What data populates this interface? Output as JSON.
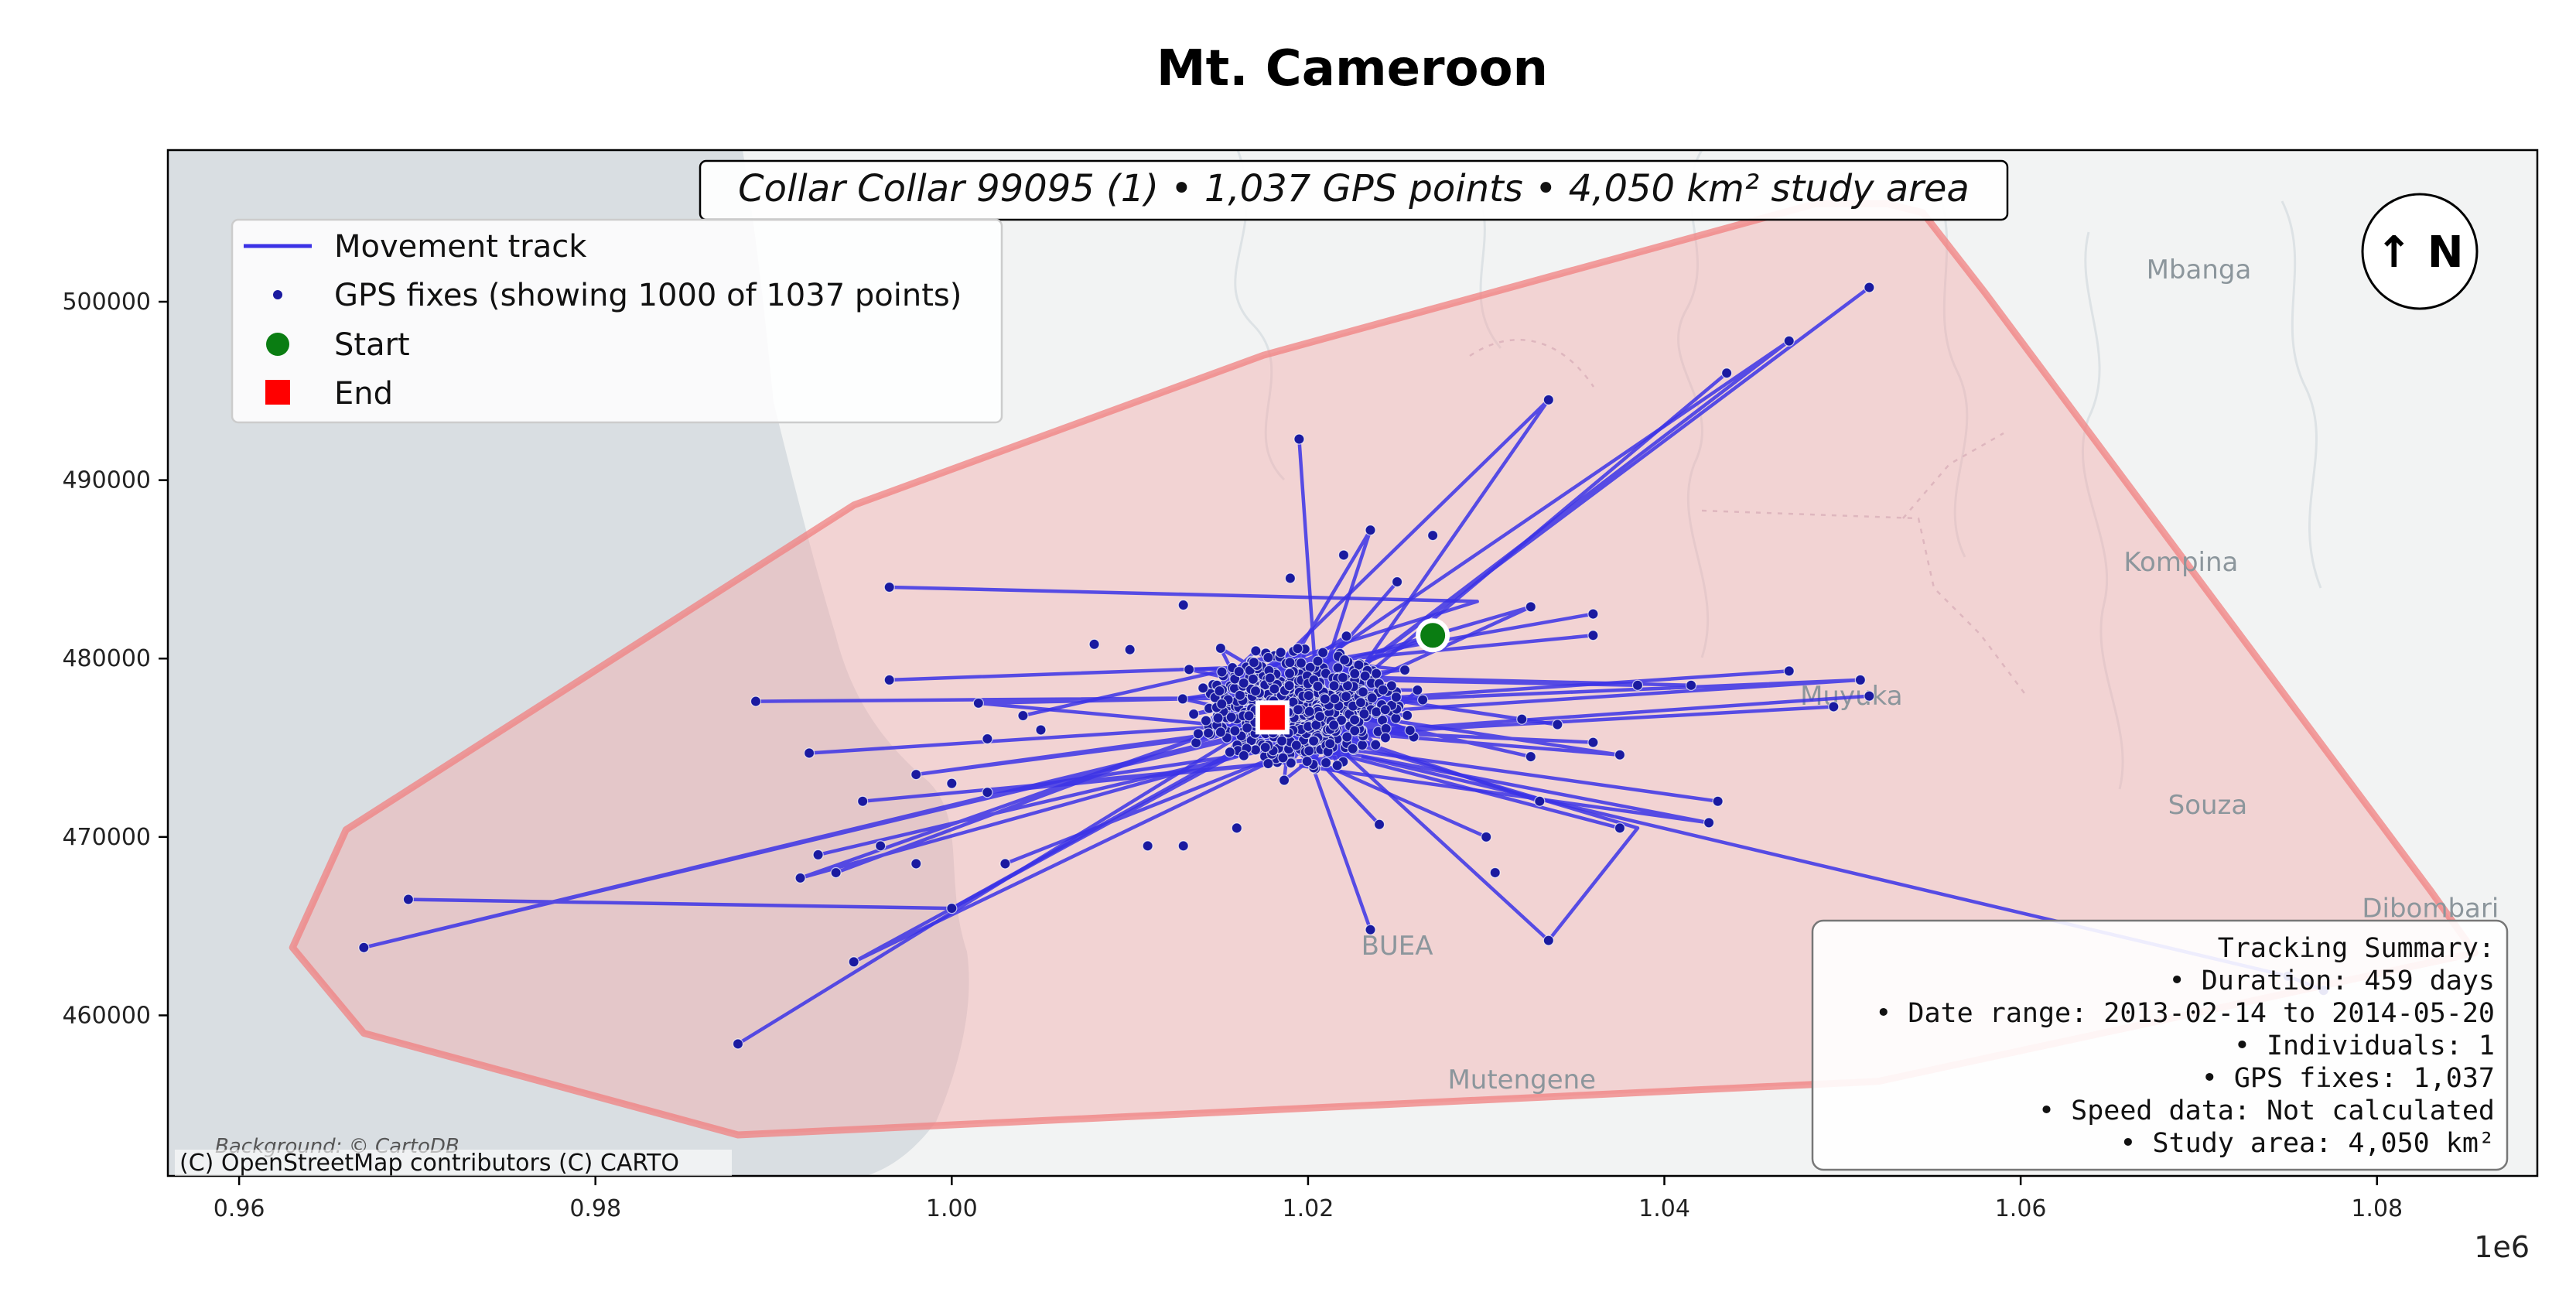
{
  "chart_data": {
    "type": "scatter",
    "title": "Mt. Cameroon",
    "xlim": [
      956000,
      1089000
    ],
    "ylim": [
      451000,
      508500
    ],
    "x_ticks": [
      960000,
      980000,
      1000000,
      1020000,
      1040000,
      1060000,
      1080000
    ],
    "x_tick_labels": [
      "0.96",
      "0.98",
      "1.00",
      "1.02",
      "1.04",
      "1.06",
      "1.08"
    ],
    "x_offset_label": "1e6",
    "y_ticks": [
      460000,
      470000,
      480000,
      490000,
      500000
    ],
    "y_tick_labels": [
      "460000",
      "470000",
      "480000",
      "490000",
      "500000"
    ],
    "banner": "Collar Collar 99095 (1) • 1,037 GPS points • 4,050 km² study area",
    "north_arrow": "↑ N",
    "legend": {
      "position": "top-left",
      "entries": [
        {
          "label": "Movement track",
          "marker": "line",
          "color": "#3b32e6"
        },
        {
          "label": "GPS fixes (showing 1000 of 1037 points)",
          "marker": "dot",
          "color": "#1a1aa0"
        },
        {
          "label": "Start",
          "marker": "circle",
          "color": "#0a7d12"
        },
        {
          "label": "End",
          "marker": "square",
          "color": "#ff0000"
        }
      ]
    },
    "summary": {
      "heading": "Tracking Summary:",
      "lines": [
        "• Duration: 459 days",
        "• Date range: 2013-02-14 to 2014-05-20",
        "• Individuals: 1",
        "• GPS fixes: 1,037",
        "• Speed data: Not calculated",
        "• Study area: 4,050 km²"
      ]
    },
    "credits": {
      "background": "Background: © CartoDB",
      "attribution": "(C) OpenStreetMap contributors (C) CARTO"
    },
    "map_labels": [
      {
        "text": "Mbanga",
        "x": 1070000,
        "y": 501300
      },
      {
        "text": "Kompina",
        "x": 1069000,
        "y": 484900
      },
      {
        "text": "Muyuka",
        "x": 1050500,
        "y": 477400
      },
      {
        "text": "Souza",
        "x": 1070500,
        "y": 471300
      },
      {
        "text": "Dibombari",
        "x": 1083000,
        "y": 465500
      },
      {
        "text": "BUEA",
        "x": 1025000,
        "y": 463400
      },
      {
        "text": "Mutengene",
        "x": 1032000,
        "y": 455900
      }
    ],
    "hull": [
      [
        1052500,
        505500
      ],
      [
        1054500,
        505000
      ],
      [
        1058000,
        500500
      ],
      [
        1083000,
        467000
      ],
      [
        1085500,
        463500
      ],
      [
        1052000,
        456300
      ],
      [
        988000,
        453300
      ],
      [
        967000,
        459000
      ],
      [
        963000,
        463800
      ],
      [
        966000,
        470400
      ],
      [
        994500,
        488600
      ],
      [
        1017500,
        497000
      ],
      [
        1048500,
        505500
      ]
    ],
    "colors": {
      "hull_fill": "#f4a6a6",
      "hull_edge": "#f08080",
      "track": "#3b32e6",
      "fix": "#1a1aa0",
      "water": "#d9dee2",
      "land": "#f2f3f3"
    },
    "start": {
      "x": 1027000,
      "y": 481300
    },
    "end": {
      "x": 1018000,
      "y": 476700
    },
    "outliers": [
      [
        1051500,
        500800
      ],
      [
        1047000,
        497800
      ],
      [
        1043500,
        496000
      ],
      [
        1033500,
        494500
      ],
      [
        1019500,
        492300
      ],
      [
        1023500,
        487200
      ],
      [
        1027000,
        486900
      ],
      [
        1022000,
        485800
      ],
      [
        996500,
        484000
      ],
      [
        1019000,
        484500
      ],
      [
        1013000,
        483000
      ],
      [
        1025000,
        484300
      ],
      [
        1032500,
        482900
      ],
      [
        1036000,
        482500
      ],
      [
        1036000,
        481300
      ],
      [
        1047000,
        479300
      ],
      [
        1051000,
        478800
      ],
      [
        1051500,
        477900
      ],
      [
        1049500,
        477300
      ],
      [
        1041500,
        478500
      ],
      [
        1038500,
        478500
      ],
      [
        996500,
        478800
      ],
      [
        989000,
        477600
      ],
      [
        1001500,
        477500
      ],
      [
        1004000,
        476800
      ],
      [
        1005000,
        476000
      ],
      [
        1002000,
        475500
      ],
      [
        1032000,
        476600
      ],
      [
        1034000,
        476300
      ],
      [
        1036000,
        475300
      ],
      [
        1037500,
        474600
      ],
      [
        1032500,
        474500
      ],
      [
        992000,
        474700
      ],
      [
        998000,
        473500
      ],
      [
        1000000,
        473000
      ],
      [
        995000,
        472000
      ],
      [
        1002000,
        472500
      ],
      [
        1033000,
        472000
      ],
      [
        1043000,
        472000
      ],
      [
        1042500,
        470800
      ],
      [
        1037500,
        470500
      ],
      [
        1030000,
        470000
      ],
      [
        1024000,
        470700
      ],
      [
        1016000,
        470500
      ],
      [
        1013000,
        469500
      ],
      [
        1011000,
        469500
      ],
      [
        992500,
        469000
      ],
      [
        991500,
        467700
      ],
      [
        993500,
        468000
      ],
      [
        996000,
        469500
      ],
      [
        998000,
        468500
      ],
      [
        1000000,
        466000
      ],
      [
        1003000,
        468500
      ],
      [
        969500,
        466500
      ],
      [
        967000,
        463800
      ],
      [
        994500,
        463000
      ],
      [
        1023500,
        464800
      ],
      [
        1033500,
        464200
      ],
      [
        1030500,
        468000
      ],
      [
        988000,
        458400
      ],
      [
        1075000,
        462200
      ],
      [
        1077000,
        461400
      ],
      [
        1010000,
        480500
      ],
      [
        1008000,
        480800
      ]
    ],
    "tracks": [
      [
        [
          1051500,
          500800
        ],
        [
          1019000,
          476500
        ],
        [
          1047000,
          497800
        ],
        [
          1017500,
          477700
        ]
      ],
      [
        [
          1043500,
          496000
        ],
        [
          1022000,
          478000
        ],
        [
          1033500,
          494500
        ],
        [
          1015500,
          477000
        ]
      ],
      [
        [
          1019500,
          492300
        ],
        [
          1020500,
          478000
        ],
        [
          1023500,
          487200
        ],
        [
          1017000,
          476300
        ]
      ],
      [
        [
          996500,
          484000
        ],
        [
          1029500,
          483200
        ],
        [
          1016000,
          479000
        ],
        [
          1036000,
          482500
        ]
      ],
      [
        [
          1047000,
          479300
        ],
        [
          1020000,
          477500
        ],
        [
          1051000,
          478800
        ],
        [
          1018500,
          476700
        ]
      ],
      [
        [
          1051500,
          477900
        ],
        [
          1017000,
          475500
        ],
        [
          1049500,
          477300
        ]
      ],
      [
        [
          989000,
          477600
        ],
        [
          1016000,
          477800
        ],
        [
          1001500,
          477500
        ],
        [
          1018000,
          476000
        ]
      ],
      [
        [
          992000,
          474700
        ],
        [
          1020000,
          476500
        ],
        [
          998000,
          473500
        ],
        [
          1017500,
          476000
        ]
      ],
      [
        [
          995000,
          472000
        ],
        [
          1022000,
          474500
        ],
        [
          1002000,
          472500
        ],
        [
          1019000,
          475000
        ]
      ],
      [
        [
          1043000,
          472000
        ],
        [
          1018000,
          475500
        ],
        [
          1042500,
          470800
        ],
        [
          1019500,
          474000
        ]
      ],
      [
        [
          1037500,
          470500
        ],
        [
          1016500,
          476000
        ],
        [
          1030000,
          470000
        ]
      ],
      [
        [
          992500,
          469000
        ],
        [
          1016000,
          474500
        ],
        [
          991500,
          467700
        ],
        [
          1015000,
          476000
        ],
        [
          993500,
          468000
        ]
      ],
      [
        [
          969500,
          466500
        ],
        [
          1000000,
          466000
        ],
        [
          1018000,
          476000
        ],
        [
          967000,
          463800
        ],
        [
          1019500,
          476500
        ]
      ],
      [
        [
          1003000,
          468500
        ],
        [
          1019500,
          475000
        ],
        [
          994500,
          463000
        ],
        [
          1017500,
          475500
        ]
      ],
      [
        [
          1023500,
          464800
        ],
        [
          1019000,
          477500
        ],
        [
          1033500,
          464200
        ],
        [
          1038500,
          470500
        ],
        [
          1020000,
          476000
        ]
      ],
      [
        [
          988000,
          458400
        ],
        [
          1017500,
          476500
        ]
      ],
      [
        [
          1077000,
          461400
        ],
        [
          1075000,
          462200
        ],
        [
          1023000,
          474500
        ]
      ],
      [
        [
          1036000,
          475300
        ],
        [
          1020500,
          476000
        ],
        [
          1037500,
          474600
        ],
        [
          1021500,
          477000
        ],
        [
          1032500,
          474500
        ]
      ],
      [
        [
          1032000,
          476600
        ],
        [
          1022500,
          478000
        ],
        [
          1034000,
          476300
        ]
      ],
      [
        [
          1041500,
          478500
        ],
        [
          1021000,
          479000
        ],
        [
          1038500,
          478500
        ],
        [
          1023000,
          478800
        ]
      ],
      [
        [
          1036000,
          481300
        ],
        [
          1022500,
          480000
        ],
        [
          1032500,
          482900
        ],
        [
          1024000,
          479000
        ]
      ],
      [
        [
          1027000,
          481300
        ],
        [
          1020000,
          478500
        ],
        [
          1025000,
          484300
        ]
      ],
      [
        [
          1033000,
          472000
        ],
        [
          1018000,
          477000
        ],
        [
          1024000,
          470700
        ]
      ],
      [
        [
          996500,
          478800
        ],
        [
          1016000,
          479500
        ],
        [
          1004000,
          476800
        ]
      ]
    ]
  }
}
